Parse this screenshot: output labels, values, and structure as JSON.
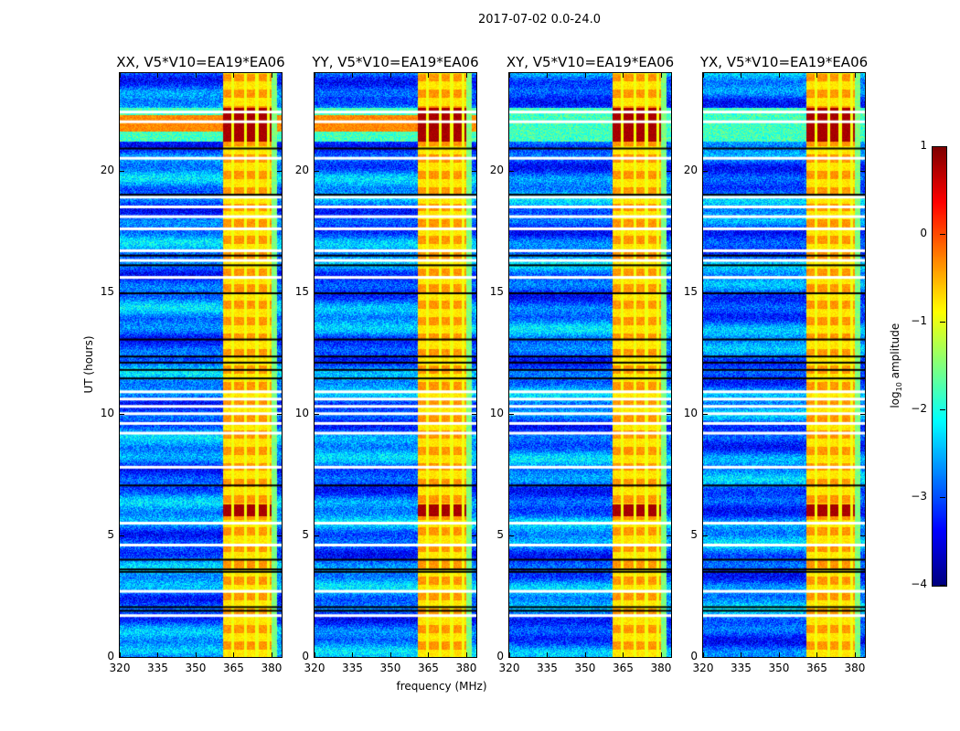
{
  "chart_data": {
    "type": "heatmap",
    "title": "2017-07-02 0.0-24.0",
    "xlabel": "frequency (MHz)",
    "ylabel": "UT (hours)",
    "xlim": [
      320,
      384
    ],
    "ylim": [
      0,
      24
    ],
    "xticks": [
      320,
      335,
      350,
      365,
      380
    ],
    "yticks": [
      0,
      5,
      10,
      15,
      20
    ],
    "panels": [
      {
        "title": "XX, V5*V10=EA19*EA06",
        "cross_band_rfi": true
      },
      {
        "title": "YY, V5*V10=EA19*EA06",
        "cross_band_rfi": true
      },
      {
        "title": "XY, V5*V10=EA19*EA06",
        "cross_band_rfi": false
      },
      {
        "title": "YX, V5*V10=EA19*EA06",
        "cross_band_rfi": false
      }
    ],
    "rfi_band_mhz": [
      360.5,
      380
    ],
    "rfi_gaps_mhz": [
      364.5,
      369.5,
      374,
      378.5
    ],
    "strong_rfi_hours": [
      [
        21.2,
        22.6
      ],
      [
        5.8,
        6.3
      ]
    ],
    "flagged_white_hours": [
      1.7,
      2.7,
      4.6,
      5.5,
      7.8,
      9.2,
      9.6,
      10.0,
      10.3,
      10.6,
      10.9,
      15.6,
      16.3,
      16.7,
      17.6,
      18.1,
      18.5,
      18.9,
      20.5,
      22.0,
      22.4
    ],
    "flagged_black_hours": [
      1.9,
      2.05,
      3.5,
      3.6,
      4.0,
      7.05,
      11.45,
      11.8,
      12.1,
      12.35,
      13.05,
      14.95,
      16.1,
      16.5,
      19.0,
      20.9
    ],
    "colorbar": {
      "label_main": "log",
      "label_sub": "10",
      "label_rest": " amplitude",
      "range": [
        -4,
        1
      ],
      "ticks": [
        "1",
        "0",
        "−1",
        "−2",
        "−3",
        "−4"
      ],
      "colormap": "jet"
    }
  }
}
